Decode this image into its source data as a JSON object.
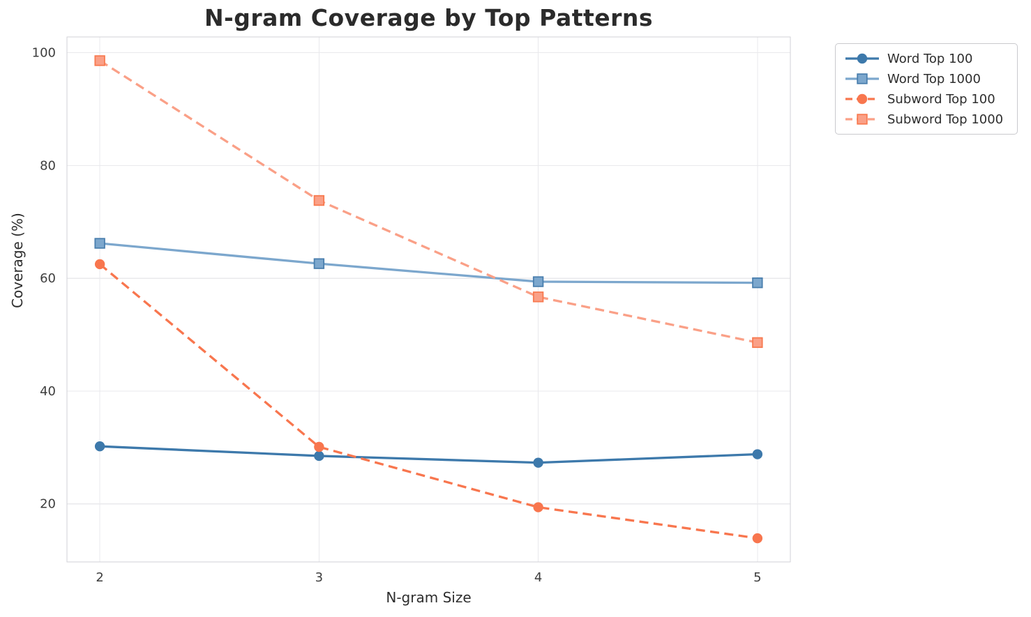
{
  "figure": {
    "background": "#ffffff",
    "grid_color": "#e9e9ec",
    "spine_color": "#d2d2d7",
    "title_color": "#2b2b2b",
    "tick_color": "#3d3d3d",
    "legend_border_color": "#c9c9cd"
  },
  "chart_data": {
    "type": "line",
    "title": "N-gram Coverage by Top Patterns",
    "xlabel": "N-gram Size",
    "ylabel": "Coverage (%)",
    "x": [
      2,
      3,
      4,
      5
    ],
    "xticks": [
      2,
      3,
      4,
      5
    ],
    "yticks": [
      20,
      40,
      60,
      80,
      100
    ],
    "xlim": [
      1.85,
      5.15
    ],
    "ylim": [
      9.7,
      102.8
    ],
    "grid": true,
    "legend_position": "outside-upper-right",
    "series": [
      {
        "name": "Word Top 100",
        "values": [
          30.2,
          28.5,
          27.3,
          28.8
        ],
        "color": "#3d79ab",
        "line_style": "solid",
        "marker": "circle"
      },
      {
        "name": "Word Top 1000",
        "values": [
          66.2,
          62.6,
          59.4,
          59.2
        ],
        "color": "#7ca7cd",
        "marker_edge": "#4a7fae",
        "line_style": "solid",
        "marker": "square"
      },
      {
        "name": "Subword Top 100",
        "values": [
          62.5,
          30.1,
          19.4,
          13.9
        ],
        "color": "#f8764e",
        "line_style": "dashed",
        "marker": "circle"
      },
      {
        "name": "Subword Top 1000",
        "values": [
          98.6,
          73.8,
          56.7,
          48.6
        ],
        "color": "#faa087",
        "marker_edge": "#f87a50",
        "line_style": "dashed",
        "marker": "square"
      }
    ]
  }
}
